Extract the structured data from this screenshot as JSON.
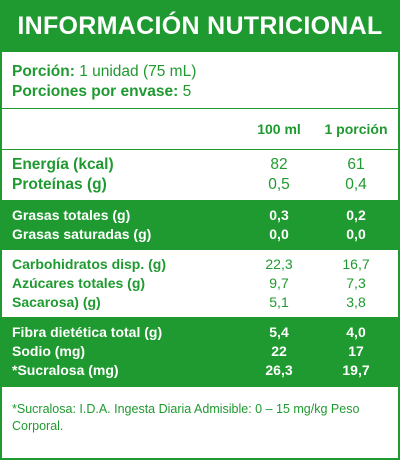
{
  "title": "INFORMACIÓN NUTRICIONAL",
  "serving": {
    "portion_label": "Porción:",
    "portion_value": "1 unidad (75 mL)",
    "per_container_label": "Porciones por envase:",
    "per_container_value": "5"
  },
  "columns": {
    "per100": "100 ml",
    "perPortion": "1 porción"
  },
  "blocks": [
    {
      "style": "white",
      "rows": [
        {
          "name": "Energía (kcal)",
          "per100": "82",
          "perPortion": "61"
        },
        {
          "name": "Proteínas (g)",
          "per100": "0,5",
          "perPortion": "0,4"
        }
      ]
    },
    {
      "style": "green",
      "rows": [
        {
          "name": "Grasas totales (g)",
          "per100": "0,3",
          "perPortion": "0,2"
        },
        {
          "name": "Grasas saturadas (g)",
          "per100": "0,0",
          "perPortion": "0,0"
        }
      ]
    },
    {
      "style": "white",
      "rows": [
        {
          "name": "Carbohidratos disp. (g)",
          "per100": "22,3",
          "perPortion": "16,7"
        },
        {
          "name": "Azúcares totales (g)",
          "per100": "9,7",
          "perPortion": "7,3"
        },
        {
          "name": "Sacarosa) (g)",
          "per100": "5,1",
          "perPortion": "3,8"
        }
      ]
    },
    {
      "style": "green",
      "rows": [
        {
          "name": "Fibra dietética total (g)",
          "per100": "5,4",
          "perPortion": "4,0"
        },
        {
          "name": "Sodio (mg)",
          "per100": "22",
          "perPortion": "17"
        },
        {
          "name": "*Sucralosa (mg)",
          "per100": "26,3",
          "perPortion": "19,7"
        }
      ]
    }
  ],
  "footnote": "*Sucralosa: I.D.A. Ingesta Diaria Admisible: 0 – 15 mg/kg Peso Corporal.",
  "colors": {
    "brand_green": "#1f9a30",
    "text_on_green": "#ffffff"
  }
}
